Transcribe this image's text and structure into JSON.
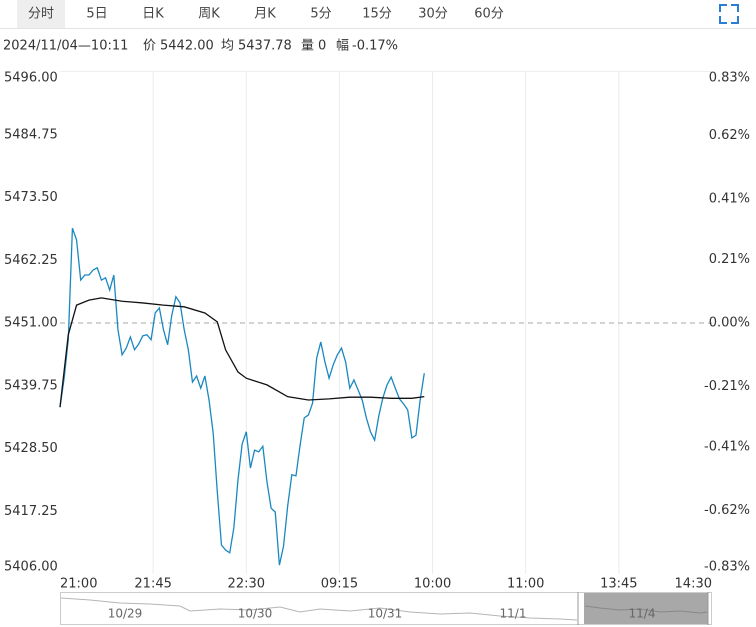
{
  "header": {
    "tabs": [
      "分时",
      "5日",
      "日K",
      "周K",
      "月K",
      "5分",
      "15分",
      "30分",
      "60分"
    ],
    "active_tab": 0,
    "info": {
      "time": "2024/11/04—10:11",
      "price_label": "价",
      "price": "5442.00",
      "avg_label": "均",
      "avg": "5437.78",
      "volume_label": "量",
      "volume": "0",
      "change_label": "幅",
      "change": "-0.17%"
    }
  },
  "chart_data": {
    "type": "line",
    "xlim": [
      0,
      315
    ],
    "xticks": [
      {
        "value": 0,
        "label": "21:00"
      },
      {
        "value": 45,
        "label": "21:45"
      },
      {
        "value": 90,
        "label": "22:30"
      },
      {
        "value": 135,
        "label": "09:15"
      },
      {
        "value": 180,
        "label": "10:00"
      },
      {
        "value": 225,
        "label": "11:00"
      },
      {
        "value": 270,
        "label": "13:45"
      },
      {
        "value": 315,
        "label": "14:30"
      }
    ],
    "ylim": [
      5406,
      5496
    ],
    "yticks": [
      {
        "value": 5496,
        "label": "5496.00"
      },
      {
        "value": 5484.75,
        "label": "5484.75"
      },
      {
        "value": 5473.5,
        "label": "5473.50"
      },
      {
        "value": 5462.25,
        "label": "5462.25"
      },
      {
        "value": 5451,
        "label": "5451.00"
      },
      {
        "value": 5439.75,
        "label": "5439.75"
      },
      {
        "value": 5428.5,
        "label": "5428.50"
      },
      {
        "value": 5417.25,
        "label": "5417.25"
      },
      {
        "value": 5406,
        "label": "5406.00"
      }
    ],
    "y2lim": [
      -0.83,
      0.83
    ],
    "y2ticks": [
      {
        "value": 0.83,
        "label": "0.83%"
      },
      {
        "value": 0.62,
        "label": "0.62%"
      },
      {
        "value": 0.41,
        "label": "0.41%"
      },
      {
        "value": 0.21,
        "label": "0.21%"
      },
      {
        "value": 0,
        "label": "0.00%"
      },
      {
        "value": -0.21,
        "label": "-0.21%"
      },
      {
        "value": -0.41,
        "label": "-0.41%"
      },
      {
        "value": -0.62,
        "label": "-0.62%"
      },
      {
        "value": -0.83,
        "label": "-0.83%"
      }
    ],
    "prev_close": 5451,
    "up_color": "#d9201e",
    "down_color": "#1a9a3a",
    "flat_color": "#555555",
    "grid": "x",
    "series": [
      {
        "name": "价",
        "color": "#1a88c0",
        "x": [
          0,
          2,
          4,
          6,
          8,
          10,
          12,
          14,
          16,
          18,
          20,
          22,
          24,
          26,
          28,
          30,
          32,
          34,
          36,
          38,
          40,
          42,
          44,
          46,
          48,
          50,
          52,
          54,
          56,
          58,
          60,
          62,
          64,
          66,
          68,
          70,
          72,
          74,
          76,
          78,
          80,
          82,
          84,
          86,
          88,
          90,
          92,
          94,
          96,
          98,
          100,
          102,
          104,
          106,
          108,
          110,
          112,
          114,
          116,
          118,
          120,
          122,
          124,
          126,
          128,
          130,
          132,
          134,
          136,
          138,
          140,
          142,
          144,
          146,
          148,
          150,
          152,
          154,
          156,
          158,
          160,
          162,
          164,
          166,
          168,
          170,
          172,
          174,
          176
        ],
        "values": [
          5435.9,
          5441.1,
          5448.0,
          5468.0,
          5465.9,
          5458.7,
          5459.6,
          5459.6,
          5460.5,
          5460.9,
          5458.7,
          5459.1,
          5456.9,
          5459.6,
          5449.8,
          5445.3,
          5446.5,
          5448.5,
          5446.2,
          5447.2,
          5448.7,
          5448.9,
          5448.0,
          5452.8,
          5453.7,
          5449.8,
          5447.1,
          5452.4,
          5455.7,
          5454.6,
          5449.8,
          5446.2,
          5440.4,
          5441.5,
          5439.3,
          5441.5,
          5437.2,
          5431.3,
          5420.7,
          5411.2,
          5410.3,
          5409.8,
          5414.3,
          5422.9,
          5429.3,
          5431.5,
          5425.0,
          5428.2,
          5427.9,
          5428.9,
          5422.5,
          5417.8,
          5417.1,
          5407.6,
          5411.0,
          5418.2,
          5423.8,
          5423.6,
          5429.1,
          5434.0,
          5434.5,
          5436.6,
          5444.7,
          5447.6,
          5444.0,
          5441.1,
          5443.5,
          5445.3,
          5446.5,
          5444.0,
          5439.3,
          5440.8,
          5439.0,
          5437.2,
          5434.0,
          5431.5,
          5430.0,
          5434.3,
          5437.6,
          5439.9,
          5441.3,
          5439.3,
          5437.4,
          5436.5,
          5435.4,
          5430.4,
          5430.9,
          5437.2,
          5442.0
        ]
      },
      {
        "name": "均",
        "color": "#111111",
        "x": [
          0,
          4,
          8,
          14,
          20,
          30,
          40,
          50,
          60,
          70,
          76,
          80,
          86,
          90,
          100,
          110,
          120,
          130,
          140,
          150,
          160,
          170,
          176
        ],
        "values": [
          5435.9,
          5448.9,
          5454.2,
          5455.1,
          5455.5,
          5454.9,
          5454.6,
          5454.2,
          5453.9,
          5452.8,
          5451.2,
          5446.2,
          5442.2,
          5441.1,
          5439.9,
          5437.8,
          5437.2,
          5437.4,
          5437.7,
          5437.7,
          5437.5,
          5437.5,
          5437.8
        ]
      }
    ]
  },
  "navigator": {
    "labels": [
      "10/29",
      "10/30",
      "10/31",
      "11/1",
      "11/4"
    ]
  }
}
